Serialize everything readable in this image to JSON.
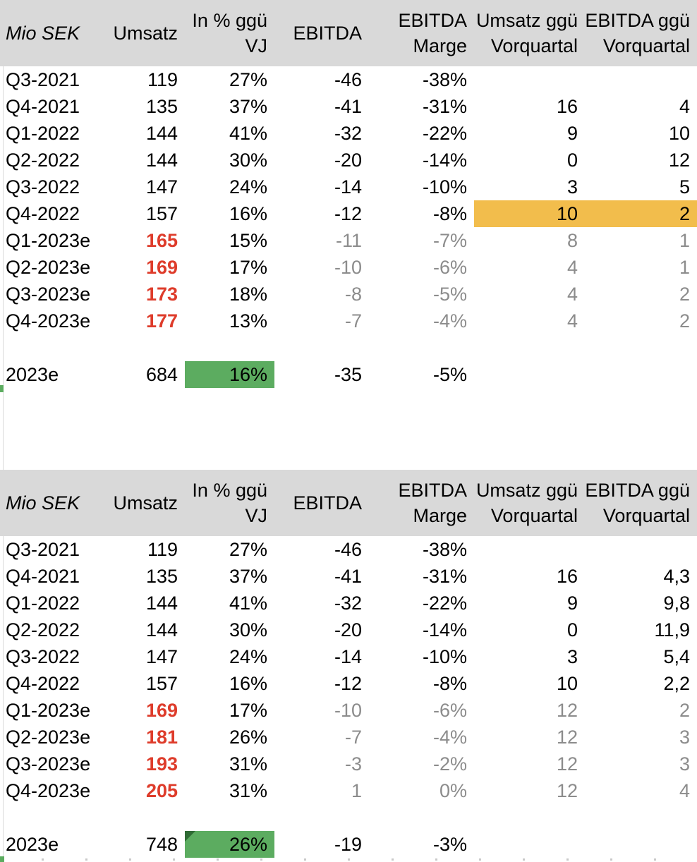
{
  "colors": {
    "header_bg": "#d9d9d9",
    "highlight_orange": "#f2bd4c",
    "highlight_green": "#5cac60",
    "triangle_green": "#2f6b34",
    "forecast_red": "#de3c2b",
    "muted_gray": "#8c8c8c"
  },
  "tables": [
    {
      "unit_label": "Mio SEK",
      "headers": [
        "Umsatz",
        "In % ggü\nVJ",
        "EBITDA",
        "EBITDA\nMarge",
        "Umsatz ggü\nVorquartal",
        "EBITDA ggü\nVorquartal"
      ],
      "rows": [
        {
          "label": "Q3-2021",
          "cells": [
            {
              "t": "119",
              "c": ""
            },
            {
              "t": "27%",
              "c": ""
            },
            {
              "t": "-46",
              "c": ""
            },
            {
              "t": "-38%",
              "c": ""
            },
            {
              "t": "",
              "c": ""
            },
            {
              "t": "",
              "c": ""
            }
          ]
        },
        {
          "label": "Q4-2021",
          "cells": [
            {
              "t": "135",
              "c": ""
            },
            {
              "t": "37%",
              "c": ""
            },
            {
              "t": "-41",
              "c": ""
            },
            {
              "t": "-31%",
              "c": ""
            },
            {
              "t": "16",
              "c": ""
            },
            {
              "t": "4",
              "c": ""
            }
          ]
        },
        {
          "label": "Q1-2022",
          "cells": [
            {
              "t": "144",
              "c": ""
            },
            {
              "t": "41%",
              "c": ""
            },
            {
              "t": "-32",
              "c": ""
            },
            {
              "t": "-22%",
              "c": ""
            },
            {
              "t": "9",
              "c": ""
            },
            {
              "t": "10",
              "c": ""
            }
          ]
        },
        {
          "label": "Q2-2022",
          "cells": [
            {
              "t": "144",
              "c": ""
            },
            {
              "t": "30%",
              "c": ""
            },
            {
              "t": "-20",
              "c": ""
            },
            {
              "t": "-14%",
              "c": ""
            },
            {
              "t": "0",
              "c": ""
            },
            {
              "t": "12",
              "c": ""
            }
          ]
        },
        {
          "label": "Q3-2022",
          "cells": [
            {
              "t": "147",
              "c": ""
            },
            {
              "t": "24%",
              "c": ""
            },
            {
              "t": "-14",
              "c": ""
            },
            {
              "t": "-10%",
              "c": ""
            },
            {
              "t": "3",
              "c": ""
            },
            {
              "t": "5",
              "c": ""
            }
          ]
        },
        {
          "label": "Q4-2022",
          "cells": [
            {
              "t": "157",
              "c": ""
            },
            {
              "t": "16%",
              "c": ""
            },
            {
              "t": "-12",
              "c": ""
            },
            {
              "t": "-8%",
              "c": ""
            },
            {
              "t": "10",
              "c": "hl"
            },
            {
              "t": "2",
              "c": "hl"
            }
          ]
        },
        {
          "label": "Q1-2023e",
          "cells": [
            {
              "t": "165",
              "c": "red"
            },
            {
              "t": "15%",
              "c": ""
            },
            {
              "t": "-11",
              "c": "mut"
            },
            {
              "t": "-7%",
              "c": "mut"
            },
            {
              "t": "8",
              "c": "mut"
            },
            {
              "t": "1",
              "c": "mut"
            }
          ]
        },
        {
          "label": "Q2-2023e",
          "cells": [
            {
              "t": "169",
              "c": "red"
            },
            {
              "t": "17%",
              "c": ""
            },
            {
              "t": "-10",
              "c": "mut"
            },
            {
              "t": "-6%",
              "c": "mut"
            },
            {
              "t": "4",
              "c": "mut"
            },
            {
              "t": "1",
              "c": "mut"
            }
          ]
        },
        {
          "label": "Q3-2023e",
          "cells": [
            {
              "t": "173",
              "c": "red"
            },
            {
              "t": "18%",
              "c": ""
            },
            {
              "t": "-8",
              "c": "mut"
            },
            {
              "t": "-5%",
              "c": "mut"
            },
            {
              "t": "4",
              "c": "mut"
            },
            {
              "t": "2",
              "c": "mut"
            }
          ]
        },
        {
          "label": "Q4-2023e",
          "cells": [
            {
              "t": "177",
              "c": "red"
            },
            {
              "t": "13%",
              "c": ""
            },
            {
              "t": "-7",
              "c": "mut"
            },
            {
              "t": "-4%",
              "c": "mut"
            },
            {
              "t": "4",
              "c": "mut"
            },
            {
              "t": "2",
              "c": "mut"
            }
          ]
        }
      ],
      "total": {
        "label": "2023e",
        "umsatz": "684",
        "pct": "16%",
        "pct_cls": "",
        "ebitda": "-35",
        "marge": "-5%"
      }
    },
    {
      "unit_label": "Mio SEK",
      "headers": [
        "Umsatz",
        "In % ggü\nVJ",
        "EBITDA",
        "EBITDA\nMarge",
        "Umsatz ggü\nVorquartal",
        "EBITDA ggü\nVorquartal"
      ],
      "rows": [
        {
          "label": "Q3-2021",
          "cells": [
            {
              "t": "119",
              "c": ""
            },
            {
              "t": "27%",
              "c": ""
            },
            {
              "t": "-46",
              "c": ""
            },
            {
              "t": "-38%",
              "c": ""
            },
            {
              "t": "",
              "c": ""
            },
            {
              "t": "",
              "c": ""
            }
          ]
        },
        {
          "label": "Q4-2021",
          "cells": [
            {
              "t": "135",
              "c": ""
            },
            {
              "t": "37%",
              "c": ""
            },
            {
              "t": "-41",
              "c": ""
            },
            {
              "t": "-31%",
              "c": ""
            },
            {
              "t": "16",
              "c": ""
            },
            {
              "t": "4,3",
              "c": ""
            }
          ]
        },
        {
          "label": "Q1-2022",
          "cells": [
            {
              "t": "144",
              "c": ""
            },
            {
              "t": "41%",
              "c": ""
            },
            {
              "t": "-32",
              "c": ""
            },
            {
              "t": "-22%",
              "c": ""
            },
            {
              "t": "9",
              "c": ""
            },
            {
              "t": "9,8",
              "c": ""
            }
          ]
        },
        {
          "label": "Q2-2022",
          "cells": [
            {
              "t": "144",
              "c": ""
            },
            {
              "t": "30%",
              "c": ""
            },
            {
              "t": "-20",
              "c": ""
            },
            {
              "t": "-14%",
              "c": ""
            },
            {
              "t": "0",
              "c": ""
            },
            {
              "t": "11,9",
              "c": ""
            }
          ]
        },
        {
          "label": "Q3-2022",
          "cells": [
            {
              "t": "147",
              "c": ""
            },
            {
              "t": "24%",
              "c": ""
            },
            {
              "t": "-14",
              "c": ""
            },
            {
              "t": "-10%",
              "c": ""
            },
            {
              "t": "3",
              "c": ""
            },
            {
              "t": "5,4",
              "c": ""
            }
          ]
        },
        {
          "label": "Q4-2022",
          "cells": [
            {
              "t": "157",
              "c": ""
            },
            {
              "t": "16%",
              "c": ""
            },
            {
              "t": "-12",
              "c": ""
            },
            {
              "t": "-8%",
              "c": ""
            },
            {
              "t": "10",
              "c": ""
            },
            {
              "t": "2,2",
              "c": ""
            }
          ]
        },
        {
          "label": "Q1-2023e",
          "cells": [
            {
              "t": "169",
              "c": "red"
            },
            {
              "t": "17%",
              "c": ""
            },
            {
              "t": "-10",
              "c": "mut"
            },
            {
              "t": "-6%",
              "c": "mut"
            },
            {
              "t": "12",
              "c": "mut"
            },
            {
              "t": "2",
              "c": "mut"
            }
          ]
        },
        {
          "label": "Q2-2023e",
          "cells": [
            {
              "t": "181",
              "c": "red"
            },
            {
              "t": "26%",
              "c": ""
            },
            {
              "t": "-7",
              "c": "mut"
            },
            {
              "t": "-4%",
              "c": "mut"
            },
            {
              "t": "12",
              "c": "mut"
            },
            {
              "t": "3",
              "c": "mut"
            }
          ]
        },
        {
          "label": "Q3-2023e",
          "cells": [
            {
              "t": "193",
              "c": "red"
            },
            {
              "t": "31%",
              "c": ""
            },
            {
              "t": "-3",
              "c": "mut"
            },
            {
              "t": "-2%",
              "c": "mut"
            },
            {
              "t": "12",
              "c": "mut"
            },
            {
              "t": "3",
              "c": "mut"
            }
          ]
        },
        {
          "label": "Q4-2023e",
          "cells": [
            {
              "t": "205",
              "c": "red"
            },
            {
              "t": "31%",
              "c": ""
            },
            {
              "t": "1",
              "c": "mut"
            },
            {
              "t": "0%",
              "c": "mut"
            },
            {
              "t": "12",
              "c": "mut"
            },
            {
              "t": "4",
              "c": "mut"
            }
          ]
        }
      ],
      "total": {
        "label": "2023e",
        "umsatz": "748",
        "pct": "26%",
        "pct_cls": "tri",
        "ebitda": "-19",
        "marge": "-3%"
      }
    }
  ]
}
